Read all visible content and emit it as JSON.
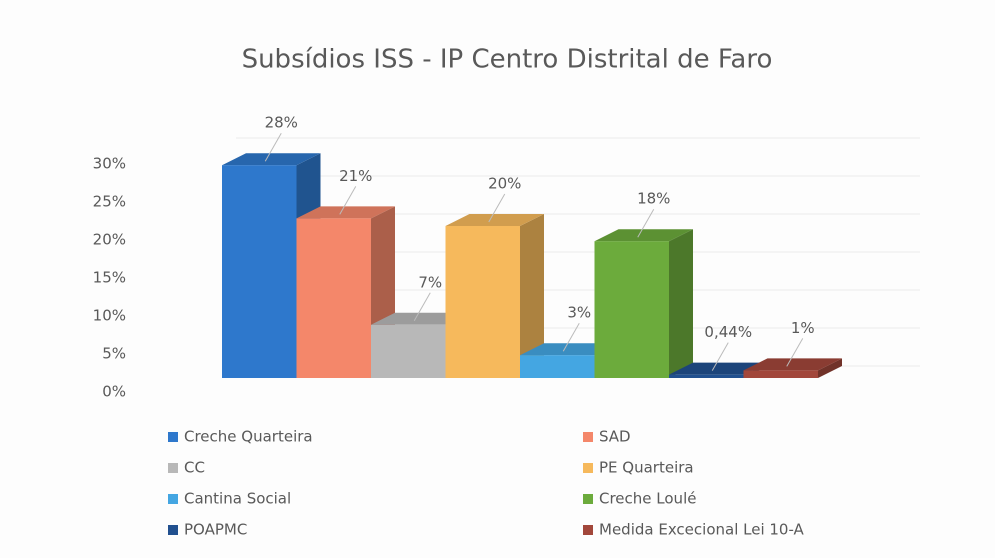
{
  "chart_data": {
    "type": "bar",
    "title": "Subsídios ISS - IP Centro Distrital de Faro",
    "categories": [
      "Creche Quarteira",
      "SAD",
      "CC",
      "PE Quarteira",
      "Cantina Social",
      "Creche Loulé",
      "POAPMC",
      "Medida Excecional Lei 10-A"
    ],
    "values": [
      28,
      21,
      7,
      20,
      3,
      18,
      0.44,
      1
    ],
    "value_labels": [
      "28%",
      "21%",
      "7%",
      "20%",
      "3%",
      "18%",
      "0,44%",
      "1%"
    ],
    "colors": [
      "#2e78cc",
      "#f4876a",
      "#b8b8b8",
      "#f6b95c",
      "#44a6e2",
      "#6cab3c",
      "#21508f",
      "#a2473b"
    ],
    "ylim": [
      0,
      30
    ],
    "yticks": [
      {
        "value": 0,
        "label": "0%"
      },
      {
        "value": 5,
        "label": "5%"
      },
      {
        "value": 10,
        "label": "10%"
      },
      {
        "value": 15,
        "label": "15%"
      },
      {
        "value": 20,
        "label": "20%"
      },
      {
        "value": 25,
        "label": "25%"
      },
      {
        "value": 30,
        "label": "30%"
      }
    ],
    "grid": true
  }
}
